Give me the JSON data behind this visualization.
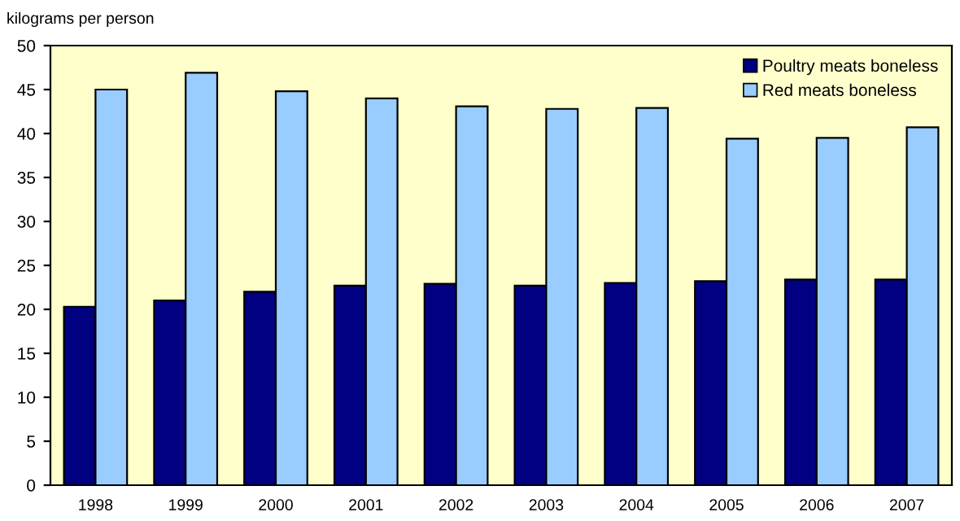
{
  "chart_data": {
    "type": "bar",
    "ylabel": "kilograms per person",
    "categories": [
      "1998",
      "1999",
      "2000",
      "2001",
      "2002",
      "2003",
      "2004",
      "2005",
      "2006",
      "2007"
    ],
    "series": [
      {
        "name": "Poultry meats boneless",
        "color": "#000080",
        "values": [
          20.3,
          21.0,
          22.0,
          22.7,
          22.9,
          22.7,
          23.0,
          23.2,
          23.4,
          23.4
        ]
      },
      {
        "name": "Red meats boneless",
        "color": "#99ccff",
        "values": [
          45.0,
          46.9,
          44.8,
          44.0,
          43.1,
          42.8,
          42.9,
          39.4,
          39.5,
          40.7
        ]
      }
    ],
    "ylim": [
      0,
      50
    ],
    "yticks": [
      0,
      5,
      10,
      15,
      20,
      25,
      30,
      35,
      40,
      45,
      50
    ],
    "grid": false,
    "legend": "top right"
  }
}
